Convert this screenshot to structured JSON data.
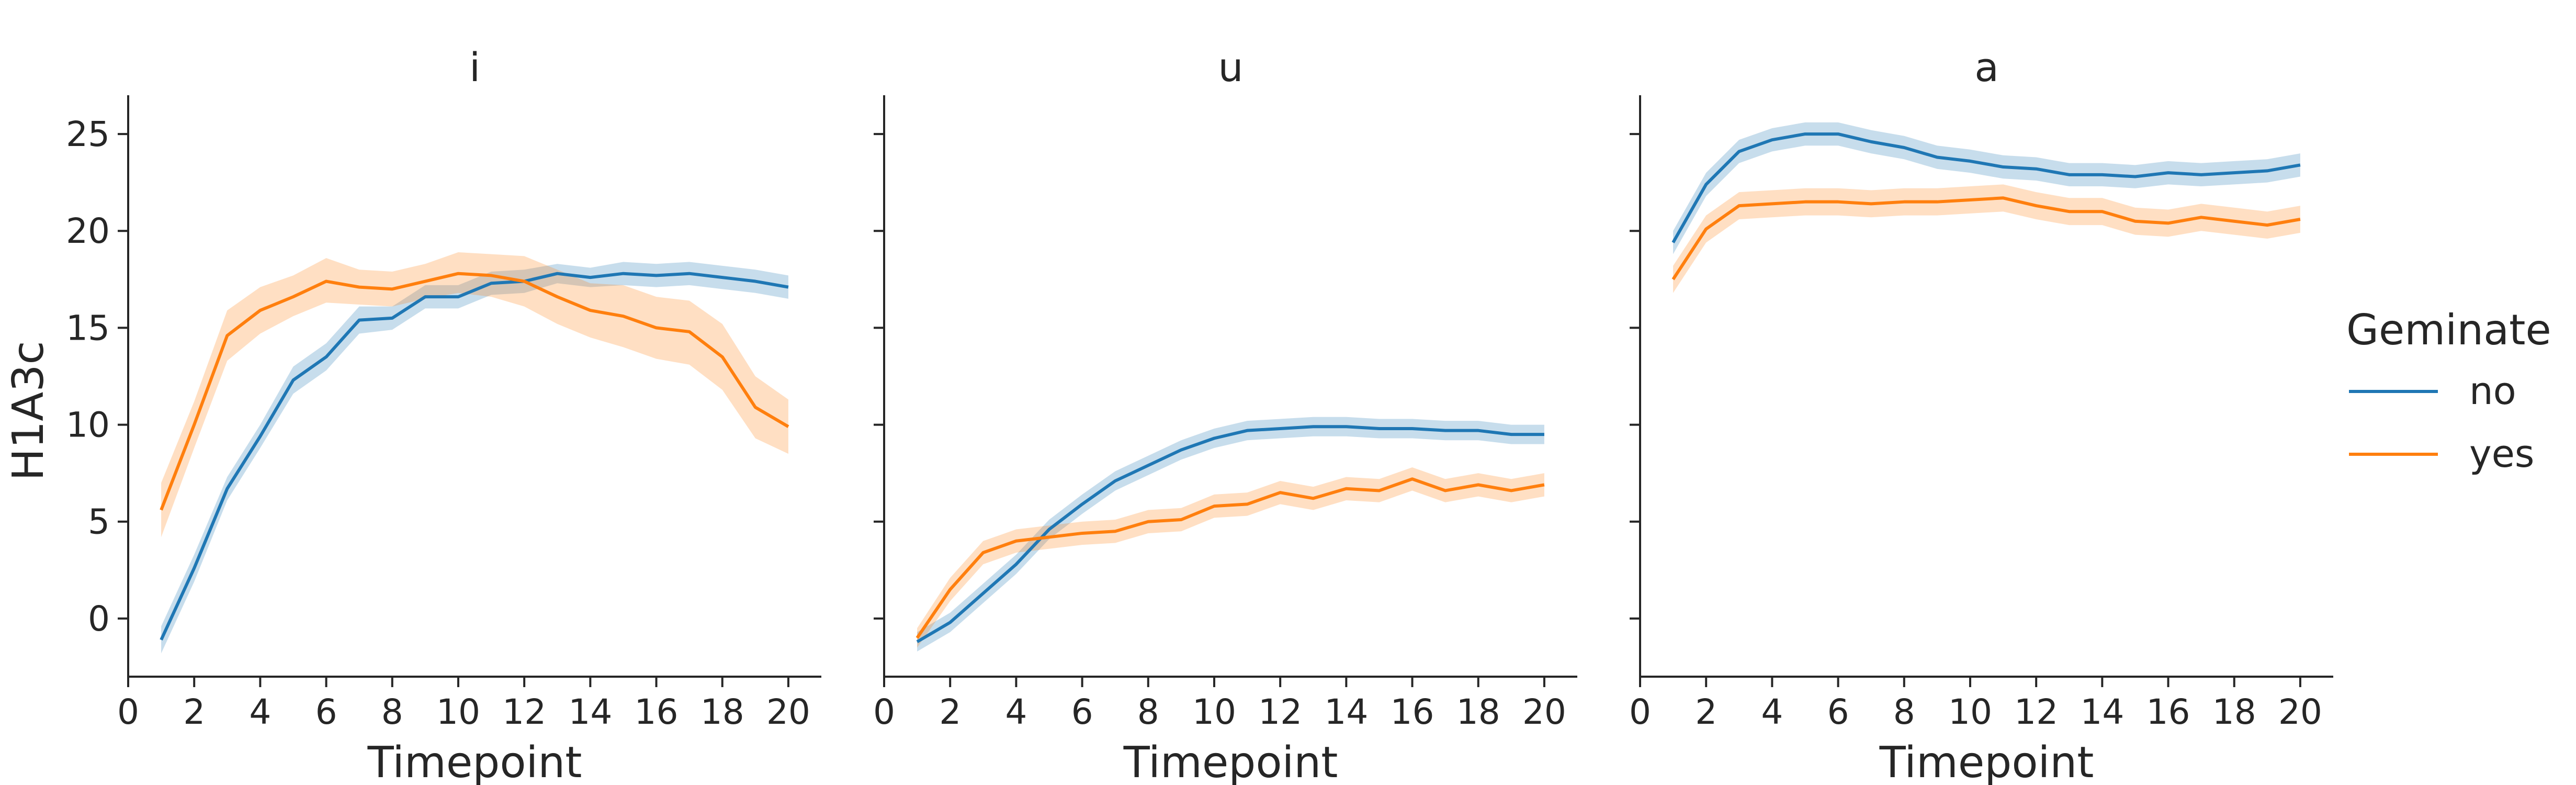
{
  "figure": {
    "ylabel": "H1A3c",
    "xlabel": "Timepoint",
    "legend_title": "Geminate",
    "legend_items": [
      "no",
      "yes"
    ]
  },
  "colors": {
    "no": "#1f77b4",
    "yes": "#ff7f0e",
    "axis": "#262626"
  },
  "chart_data": [
    {
      "type": "line",
      "title": "i",
      "xlabel": "Timepoint",
      "ylabel": "H1A3c",
      "xlim": [
        0,
        21
      ],
      "ylim": [
        -3,
        27
      ],
      "xticks": [
        0,
        2,
        4,
        6,
        8,
        10,
        12,
        14,
        16,
        18,
        20
      ],
      "yticks": [
        0,
        5,
        10,
        15,
        20,
        25
      ],
      "grid": false,
      "x": [
        1,
        2,
        3,
        4,
        5,
        6,
        7,
        8,
        9,
        10,
        11,
        12,
        13,
        14,
        15,
        16,
        17,
        18,
        19,
        20
      ],
      "series": [
        {
          "name": "no",
          "values": [
            -1.1,
            2.6,
            6.7,
            9.4,
            12.3,
            13.5,
            15.4,
            15.5,
            16.6,
            16.6,
            17.3,
            17.4,
            17.8,
            17.6,
            17.8,
            17.7,
            17.8,
            17.6,
            17.4,
            17.1
          ],
          "ci_low": [
            -1.8,
            1.9,
            6.1,
            8.8,
            11.6,
            12.8,
            14.7,
            14.9,
            16.0,
            16.0,
            16.7,
            16.8,
            17.3,
            17.1,
            17.2,
            17.1,
            17.2,
            17.0,
            16.8,
            16.5
          ],
          "ci_high": [
            -0.4,
            3.3,
            7.3,
            10.0,
            13.0,
            14.2,
            16.1,
            16.1,
            17.2,
            17.2,
            17.9,
            18.0,
            18.3,
            18.1,
            18.4,
            18.3,
            18.4,
            18.2,
            18.0,
            17.7
          ]
        },
        {
          "name": "yes",
          "values": [
            5.6,
            10.0,
            14.6,
            15.9,
            16.6,
            17.4,
            17.1,
            17.0,
            17.4,
            17.8,
            17.7,
            17.4,
            16.6,
            15.9,
            15.6,
            15.0,
            14.8,
            13.5,
            10.9,
            9.9
          ],
          "ci_low": [
            4.2,
            8.8,
            13.3,
            14.7,
            15.6,
            16.3,
            16.2,
            16.1,
            16.5,
            16.8,
            16.6,
            16.1,
            15.2,
            14.5,
            14.0,
            13.4,
            13.1,
            11.8,
            9.3,
            8.5
          ],
          "ci_high": [
            7.0,
            11.2,
            15.9,
            17.1,
            17.7,
            18.6,
            18.0,
            17.9,
            18.3,
            18.9,
            18.8,
            18.7,
            18.0,
            17.3,
            17.2,
            16.6,
            16.4,
            15.2,
            12.5,
            11.3
          ]
        }
      ]
    },
    {
      "type": "line",
      "title": "u",
      "xlabel": "Timepoint",
      "xlim": [
        0,
        21
      ],
      "ylim": [
        -3,
        27
      ],
      "xticks": [
        0,
        2,
        4,
        6,
        8,
        10,
        12,
        14,
        16,
        18,
        20
      ],
      "yticks": [
        0,
        5,
        10,
        15,
        20,
        25
      ],
      "grid": false,
      "x": [
        1,
        2,
        3,
        4,
        5,
        6,
        7,
        8,
        9,
        10,
        11,
        12,
        13,
        14,
        15,
        16,
        17,
        18,
        19,
        20
      ],
      "series": [
        {
          "name": "no",
          "values": [
            -1.2,
            -0.2,
            1.3,
            2.8,
            4.6,
            5.9,
            7.1,
            7.9,
            8.7,
            9.3,
            9.7,
            9.8,
            9.9,
            9.9,
            9.8,
            9.8,
            9.7,
            9.7,
            9.5,
            9.5
          ],
          "ci_low": [
            -1.7,
            -0.7,
            0.8,
            2.3,
            4.1,
            5.4,
            6.6,
            7.4,
            8.2,
            8.8,
            9.2,
            9.3,
            9.4,
            9.4,
            9.3,
            9.3,
            9.2,
            9.2,
            9.0,
            9.0
          ],
          "ci_high": [
            -0.7,
            0.3,
            1.8,
            3.3,
            5.1,
            6.4,
            7.6,
            8.4,
            9.2,
            9.8,
            10.2,
            10.3,
            10.4,
            10.4,
            10.3,
            10.3,
            10.2,
            10.2,
            10.0,
            10.0
          ]
        },
        {
          "name": "yes",
          "values": [
            -1.0,
            1.5,
            3.4,
            4.0,
            4.2,
            4.4,
            4.5,
            5.0,
            5.1,
            5.8,
            5.9,
            6.5,
            6.2,
            6.7,
            6.6,
            7.2,
            6.6,
            6.9,
            6.6,
            6.9
          ],
          "ci_low": [
            -1.5,
            0.9,
            2.8,
            3.4,
            3.6,
            3.8,
            3.9,
            4.4,
            4.5,
            5.2,
            5.3,
            5.9,
            5.6,
            6.1,
            6.0,
            6.6,
            6.0,
            6.3,
            6.0,
            6.3
          ],
          "ci_high": [
            -0.5,
            2.1,
            4.0,
            4.6,
            4.8,
            5.0,
            5.1,
            5.6,
            5.7,
            6.4,
            6.5,
            7.1,
            6.8,
            7.3,
            7.2,
            7.8,
            7.2,
            7.5,
            7.2,
            7.5
          ]
        }
      ]
    },
    {
      "type": "line",
      "title": "a",
      "xlabel": "Timepoint",
      "xlim": [
        0,
        21
      ],
      "ylim": [
        -3,
        27
      ],
      "xticks": [
        0,
        2,
        4,
        6,
        8,
        10,
        12,
        14,
        16,
        18,
        20
      ],
      "yticks": [
        0,
        5,
        10,
        15,
        20,
        25
      ],
      "grid": false,
      "x": [
        1,
        2,
        3,
        4,
        5,
        6,
        7,
        8,
        9,
        10,
        11,
        12,
        13,
        14,
        15,
        16,
        17,
        18,
        19,
        20
      ],
      "series": [
        {
          "name": "no",
          "values": [
            19.4,
            22.4,
            24.1,
            24.7,
            25.0,
            25.0,
            24.6,
            24.3,
            23.8,
            23.6,
            23.3,
            23.2,
            22.9,
            22.9,
            22.8,
            23.0,
            22.9,
            23.0,
            23.1,
            23.4
          ],
          "ci_low": [
            18.8,
            21.8,
            23.5,
            24.1,
            24.4,
            24.4,
            24.0,
            23.7,
            23.2,
            23.0,
            22.7,
            22.6,
            22.3,
            22.3,
            22.2,
            22.4,
            22.3,
            22.4,
            22.5,
            22.8
          ],
          "ci_high": [
            20.0,
            23.0,
            24.7,
            25.3,
            25.6,
            25.6,
            25.2,
            24.9,
            24.4,
            24.2,
            23.9,
            23.8,
            23.5,
            23.5,
            23.4,
            23.6,
            23.5,
            23.6,
            23.7,
            24.0
          ]
        },
        {
          "name": "yes",
          "values": [
            17.5,
            20.1,
            21.3,
            21.4,
            21.5,
            21.5,
            21.4,
            21.5,
            21.5,
            21.6,
            21.7,
            21.3,
            21.0,
            21.0,
            20.5,
            20.4,
            20.7,
            20.5,
            20.3,
            20.6
          ],
          "ci_low": [
            16.8,
            19.4,
            20.6,
            20.7,
            20.8,
            20.8,
            20.7,
            20.8,
            20.8,
            20.9,
            21.0,
            20.6,
            20.3,
            20.3,
            19.8,
            19.7,
            20.0,
            19.8,
            19.6,
            19.9
          ],
          "ci_high": [
            18.2,
            20.8,
            22.0,
            22.1,
            22.2,
            22.2,
            22.1,
            22.2,
            22.2,
            22.3,
            22.4,
            22.0,
            21.7,
            21.7,
            21.2,
            21.1,
            21.4,
            21.2,
            21.0,
            21.3
          ]
        }
      ]
    }
  ]
}
